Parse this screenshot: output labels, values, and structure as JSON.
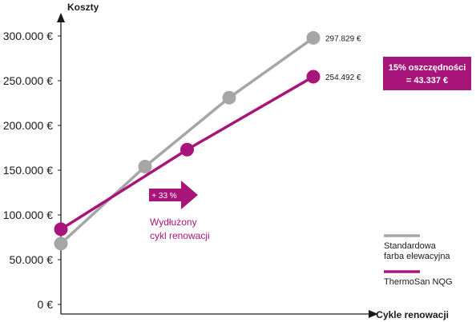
{
  "chart_data": {
    "type": "line",
    "ylabel": "Koszty",
    "xlabel": "Cykle renowacji",
    "ylim": [
      0,
      320000
    ],
    "y_ticks": [
      0,
      50000,
      100000,
      150000,
      200000,
      250000,
      300000
    ],
    "y_tick_labels": [
      "0 €",
      "50.000 €",
      "100.000 €",
      "150.000 €",
      "200.000 €",
      "250.000 €",
      "300.000 €"
    ],
    "grid": false,
    "legend_position": "bottom-right",
    "series": [
      {
        "name": "Standardowa farba elewacyjna",
        "name_lines": [
          "Standardowa",
          "farba elewacyjna"
        ],
        "color": "#a6a6a6",
        "points": [
          {
            "x": 0,
            "y": 68000
          },
          {
            "x": 1,
            "y": 154000
          },
          {
            "x": 2,
            "y": 231000
          },
          {
            "x": 3,
            "y": 297829
          }
        ],
        "end_label": "297.829 €"
      },
      {
        "name": "ThermoSan NQG",
        "name_lines": [
          "ThermoSan NQG"
        ],
        "color": "#a8157a",
        "points": [
          {
            "x": 0,
            "y": 84000
          },
          {
            "x": 1.5,
            "y": 173000
          },
          {
            "x": 3,
            "y": 254492
          }
        ],
        "end_label": "254.492 €"
      }
    ],
    "annotations": {
      "arrow_label": "+ 33 %",
      "cycle_text": [
        "Wydłużony",
        "cykl renowacji"
      ],
      "savings": [
        "15% oszczędności",
        "= 43.337 €"
      ]
    }
  }
}
